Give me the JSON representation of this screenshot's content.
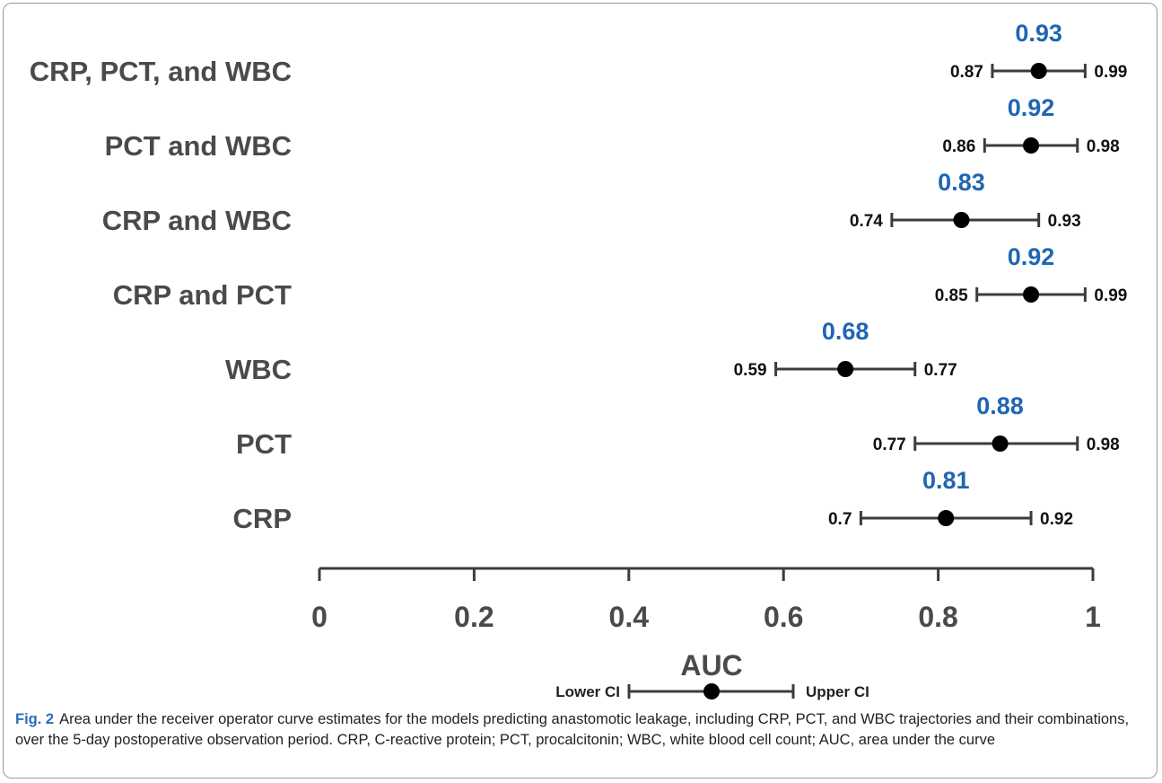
{
  "chart_data": {
    "type": "forest",
    "xlabel": "AUC",
    "xlim": [
      0,
      1
    ],
    "xticks": [
      0,
      0.2,
      0.4,
      0.6,
      0.8,
      1
    ],
    "xtick_labels": [
      "0",
      "0.2",
      "0.4",
      "0.6",
      "0.8",
      "1"
    ],
    "rows": [
      {
        "label": "CRP, PCT, and WBC",
        "auc": 0.93,
        "lower": 0.87,
        "upper": 0.99,
        "auc_text": "0.93",
        "lower_text": "0.87",
        "upper_text": "0.99"
      },
      {
        "label": "PCT and WBC",
        "auc": 0.92,
        "lower": 0.86,
        "upper": 0.98,
        "auc_text": "0.92",
        "lower_text": "0.86",
        "upper_text": "0.98"
      },
      {
        "label": "CRP and WBC",
        "auc": 0.83,
        "lower": 0.74,
        "upper": 0.93,
        "auc_text": "0.83",
        "lower_text": "0.74",
        "upper_text": "0.93"
      },
      {
        "label": "CRP and PCT",
        "auc": 0.92,
        "lower": 0.85,
        "upper": 0.99,
        "auc_text": "0.92",
        "lower_text": "0.85",
        "upper_text": "0.99"
      },
      {
        "label": "WBC",
        "auc": 0.68,
        "lower": 0.59,
        "upper": 0.77,
        "auc_text": "0.68",
        "lower_text": "0.59",
        "upper_text": "0.77"
      },
      {
        "label": "PCT",
        "auc": 0.88,
        "lower": 0.77,
        "upper": 0.98,
        "auc_text": "0.88",
        "lower_text": "0.77",
        "upper_text": "0.98"
      },
      {
        "label": "CRP",
        "auc": 0.81,
        "lower": 0.7,
        "upper": 0.92,
        "auc_text": "0.81",
        "lower_text": "0.7",
        "upper_text": "0.92"
      }
    ],
    "legend": {
      "lower": "Lower CI",
      "upper": "Upper CI"
    },
    "grid": false
  },
  "colors": {
    "auc": "#1f66b3",
    "text": "#4a4a4a",
    "marker": "#000000",
    "ci_line": "#3c3c3c"
  },
  "caption": {
    "label": "Fig. 2",
    "text": "Area under the receiver operator curve estimates for the models predicting anastomotic leakage, including CRP, PCT, and WBC trajectories and their combinations, over the 5-day postoperative observation period. CRP, C-reactive protein; PCT, procalcitonin; WBC, white blood cell count; AUC, area under the curve"
  }
}
